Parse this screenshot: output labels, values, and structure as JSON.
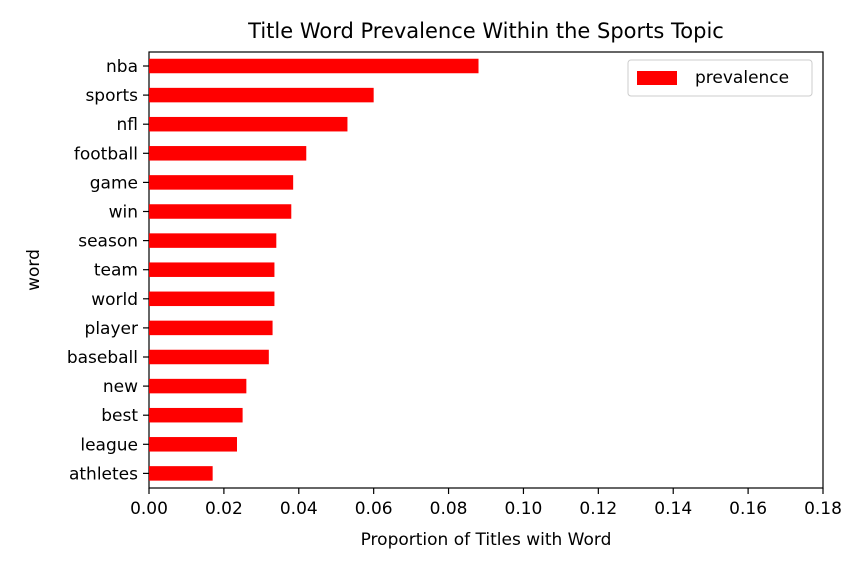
{
  "chart_data": {
    "type": "bar",
    "orientation": "horizontal",
    "title": "Title Word Prevalence Within the Sports Topic",
    "xlabel": "Proportion of Titles with Word",
    "ylabel": "word",
    "xlim": [
      0.0,
      0.18
    ],
    "xticks": [
      0.0,
      0.02,
      0.04,
      0.06,
      0.08,
      0.1,
      0.12,
      0.14,
      0.16,
      0.18
    ],
    "xtick_labels": [
      "0.00",
      "0.02",
      "0.04",
      "0.06",
      "0.08",
      "0.10",
      "0.12",
      "0.14",
      "0.16",
      "0.18"
    ],
    "categories": [
      "nba",
      "sports",
      "nfl",
      "football",
      "game",
      "win",
      "season",
      "team",
      "world",
      "player",
      "baseball",
      "new",
      "best",
      "league",
      "athletes"
    ],
    "series": [
      {
        "name": "prevalence",
        "color": "#ff0000",
        "values": [
          0.088,
          0.06,
          0.053,
          0.042,
          0.0385,
          0.038,
          0.034,
          0.0335,
          0.0335,
          0.033,
          0.032,
          0.026,
          0.025,
          0.0235,
          0.017
        ]
      }
    ],
    "legend_position": "top-right",
    "grid": false
  }
}
